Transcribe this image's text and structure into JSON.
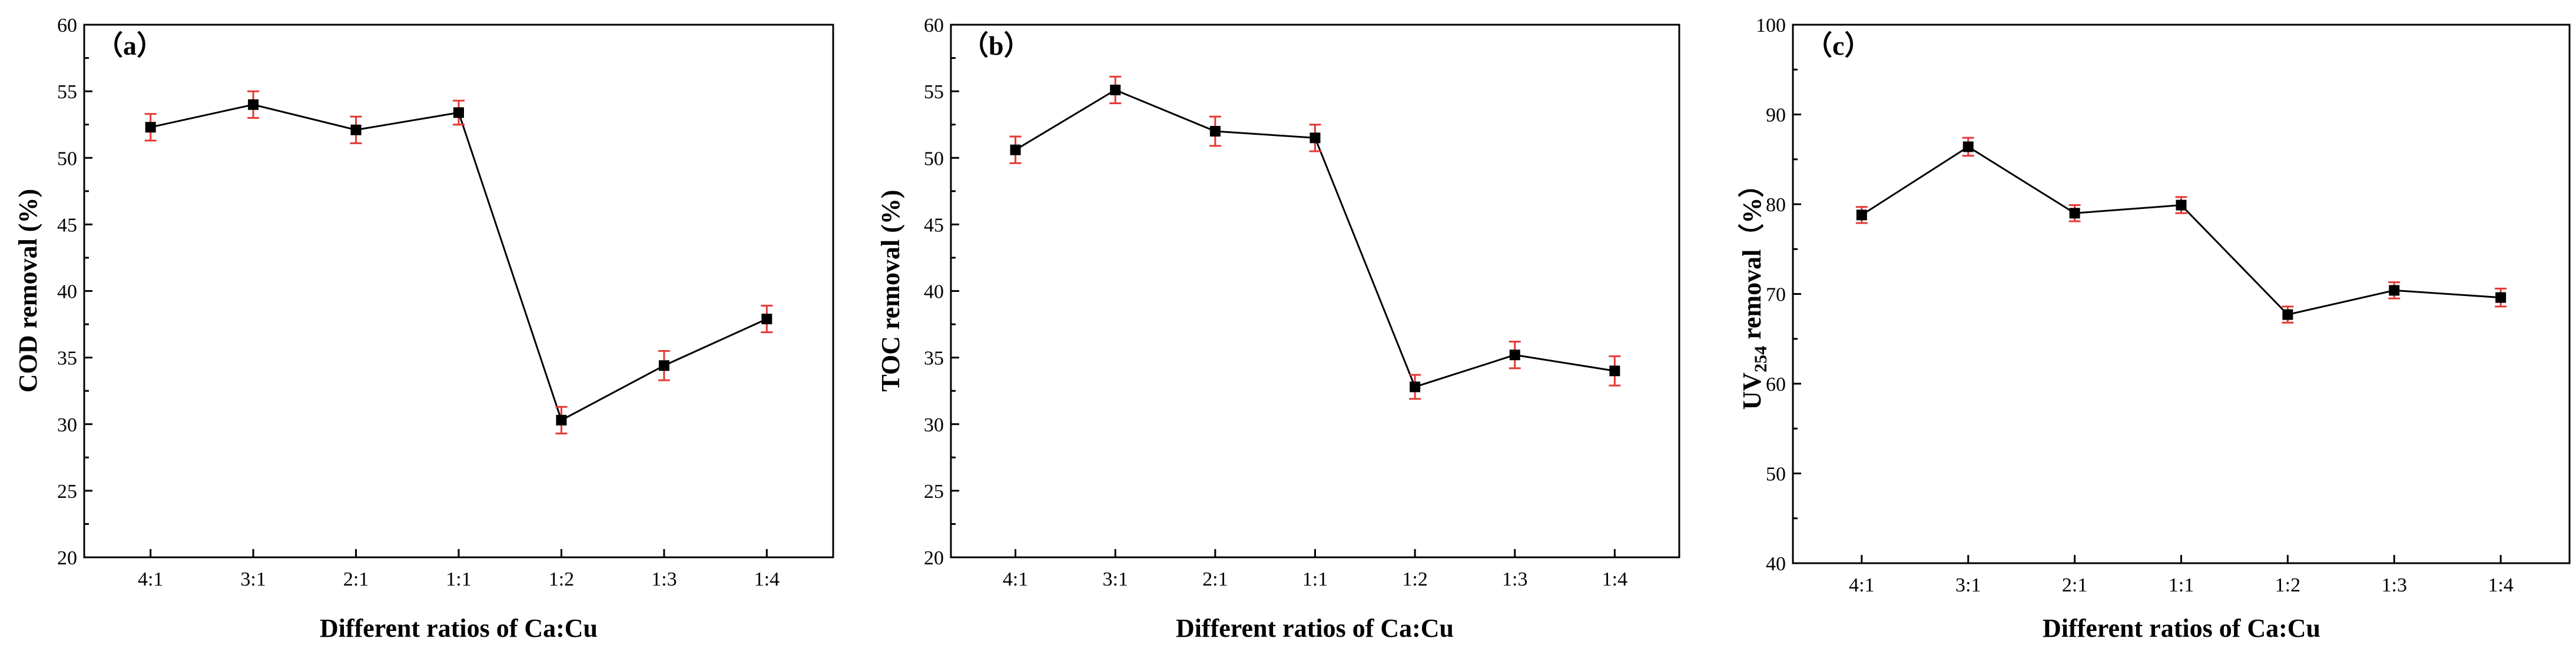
{
  "chart_data": [
    {
      "type": "line",
      "panel_label": "（a）",
      "xlabel": "Different ratios of Ca:Cu",
      "ylabel": "COD removal (%)",
      "categories": [
        "4:1",
        "3:1",
        "2:1",
        "1:1",
        "1:2",
        "1:3",
        "1:4"
      ],
      "series": [
        {
          "name": "COD removal",
          "values": [
            52.3,
            54.0,
            52.1,
            53.4,
            30.3,
            34.4,
            37.9
          ],
          "errors": [
            1.0,
            1.0,
            1.0,
            0.9,
            1.0,
            1.1,
            1.0
          ]
        }
      ],
      "ylim": [
        20,
        60
      ],
      "yticks": [
        20,
        25,
        30,
        35,
        40,
        45,
        50,
        55,
        60
      ],
      "colors": {
        "line": "#000000",
        "marker": "#000000",
        "errorbar": "#e53935"
      }
    },
    {
      "type": "line",
      "panel_label": "（b）",
      "xlabel": "Different ratios of Ca:Cu",
      "ylabel": "TOC removal (%)",
      "categories": [
        "4:1",
        "3:1",
        "2:1",
        "1:1",
        "1:2",
        "1:3",
        "1:4"
      ],
      "series": [
        {
          "name": "TOC removal",
          "values": [
            50.6,
            55.1,
            52.0,
            51.5,
            32.8,
            35.2,
            34.0
          ],
          "errors": [
            1.0,
            1.0,
            1.1,
            1.0,
            0.9,
            1.0,
            1.1
          ]
        }
      ],
      "ylim": [
        20,
        60
      ],
      "yticks": [
        20,
        25,
        30,
        35,
        40,
        45,
        50,
        55,
        60
      ],
      "colors": {
        "line": "#000000",
        "marker": "#000000",
        "errorbar": "#e53935"
      }
    },
    {
      "type": "line",
      "panel_label": "（c）",
      "xlabel": "Different ratios of Ca:Cu",
      "ylabel": "UV254 removal（%）",
      "ylabel_parts": {
        "prefix": "UV",
        "subscript": "254",
        "suffix": " removal（%）"
      },
      "categories": [
        "4:1",
        "3:1",
        "2:1",
        "1:1",
        "1:2",
        "1:3",
        "1:4"
      ],
      "series": [
        {
          "name": "UV254 removal",
          "values": [
            78.8,
            86.4,
            79.0,
            79.9,
            67.7,
            70.4,
            69.6
          ],
          "errors": [
            0.9,
            1.0,
            0.9,
            0.9,
            0.9,
            0.9,
            1.0
          ]
        }
      ],
      "ylim": [
        40,
        100
      ],
      "yticks": [
        40,
        50,
        60,
        70,
        80,
        90,
        100
      ],
      "colors": {
        "line": "#000000",
        "marker": "#000000",
        "errorbar": "#e53935"
      }
    }
  ]
}
